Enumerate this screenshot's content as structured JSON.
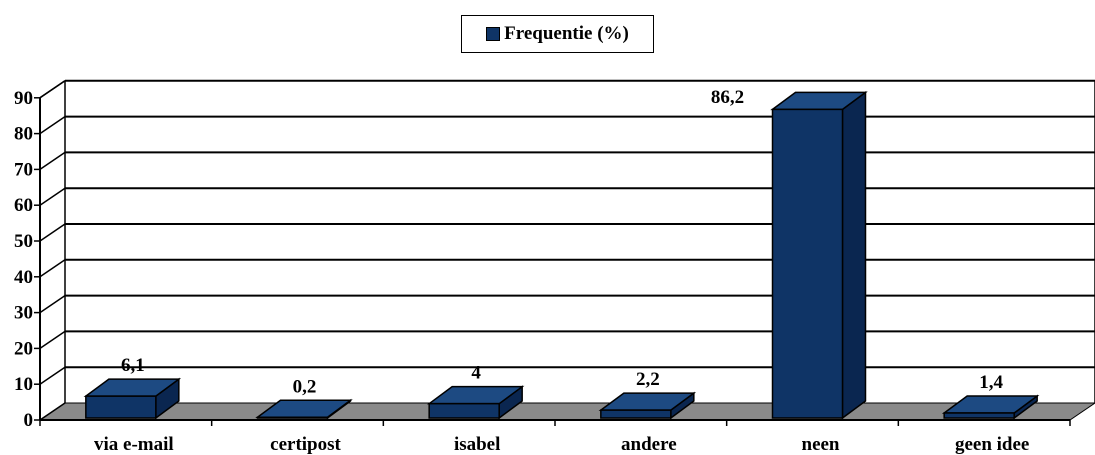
{
  "chart_data": {
    "type": "bar",
    "categories": [
      "via e-mail",
      "certipost",
      "isabel",
      "andere",
      "neen",
      "geen idee"
    ],
    "series": [
      {
        "name": "Frequentie (%)",
        "values": [
          6.1,
          0.2,
          4,
          2.2,
          86.2,
          1.4
        ]
      }
    ],
    "data_labels": [
      "6,1",
      "0,2",
      "4",
      "2,2",
      "86,2",
      "1,4"
    ],
    "ylim": [
      0,
      90
    ],
    "y_ticks": [
      "0",
      "10",
      "20",
      "30",
      "40",
      "50",
      "60",
      "70",
      "80",
      "90"
    ],
    "grid": true,
    "three_d": true,
    "legend_position": "top-center",
    "colors": {
      "bar_front": "#0f3466",
      "bar_side": "#0a2650",
      "bar_top": "#1d4a82",
      "floor": "#8a8a8a"
    }
  }
}
